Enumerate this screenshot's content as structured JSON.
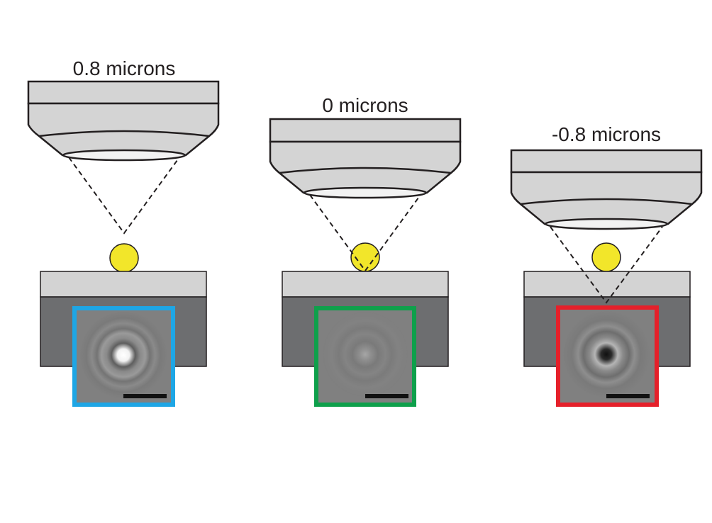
{
  "panels": [
    {
      "label": "0.8 microns",
      "frame_color": "#1ea6e5",
      "focus": "above",
      "spot": "bright"
    },
    {
      "label": "0 microns",
      "frame_color": "#0ea04b",
      "focus": "at-particle",
      "spot": "faint"
    },
    {
      "label": "-0.8 microns",
      "frame_color": "#e5202a",
      "focus": "below",
      "spot": "dark"
    }
  ],
  "colors": {
    "objective_fill": "#d4d4d4",
    "objective_stroke": "#231f20",
    "lens_fill": "#f2f2f2",
    "particle_fill": "#f2e62a",
    "stage_top": "#d3d3d3",
    "stage_body": "#6d6e70",
    "image_bg": "#7f7f7f",
    "scale_bar": "#111111"
  }
}
